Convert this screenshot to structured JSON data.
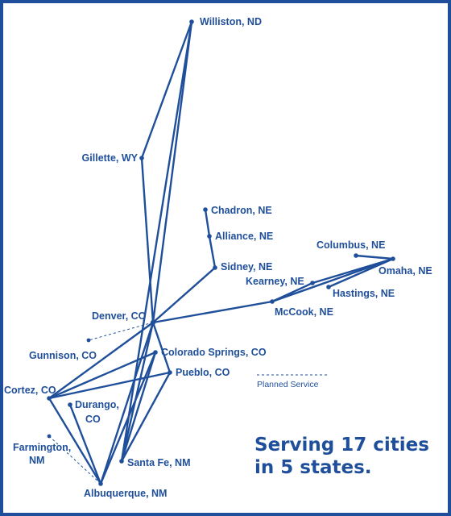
{
  "colors": {
    "brand": "#1f4f9a",
    "background": "#ffffff"
  },
  "cities": {
    "williston": "Williston, ND",
    "gillette": "Gillette, WY",
    "chadron": "Chadron, NE",
    "alliance": "Alliance, NE",
    "sidney": "Sidney, NE",
    "columbus": "Columbus, NE",
    "omaha": "Omaha, NE",
    "kearney": "Kearney, NE",
    "hastings": "Hastings, NE",
    "mccook": "McCook, NE",
    "denver": "Denver, CO",
    "gunnison": "Gunnison, CO",
    "colorado_springs": "Colorado Springs, CO",
    "pueblo": "Pueblo, CO",
    "cortez": "Cortez, CO",
    "durango_line1": "Durango,",
    "durango_line2": "CO",
    "farmington_line1": "Farmington,",
    "farmington_line2": "NM",
    "santa_fe": "Santa Fe, NM",
    "albuquerque": "Albuquerque, NM"
  },
  "legend": {
    "planned_service": "Planned Service"
  },
  "slogan": {
    "line1": "Serving 17 cities",
    "line2": "in 5 states."
  }
}
